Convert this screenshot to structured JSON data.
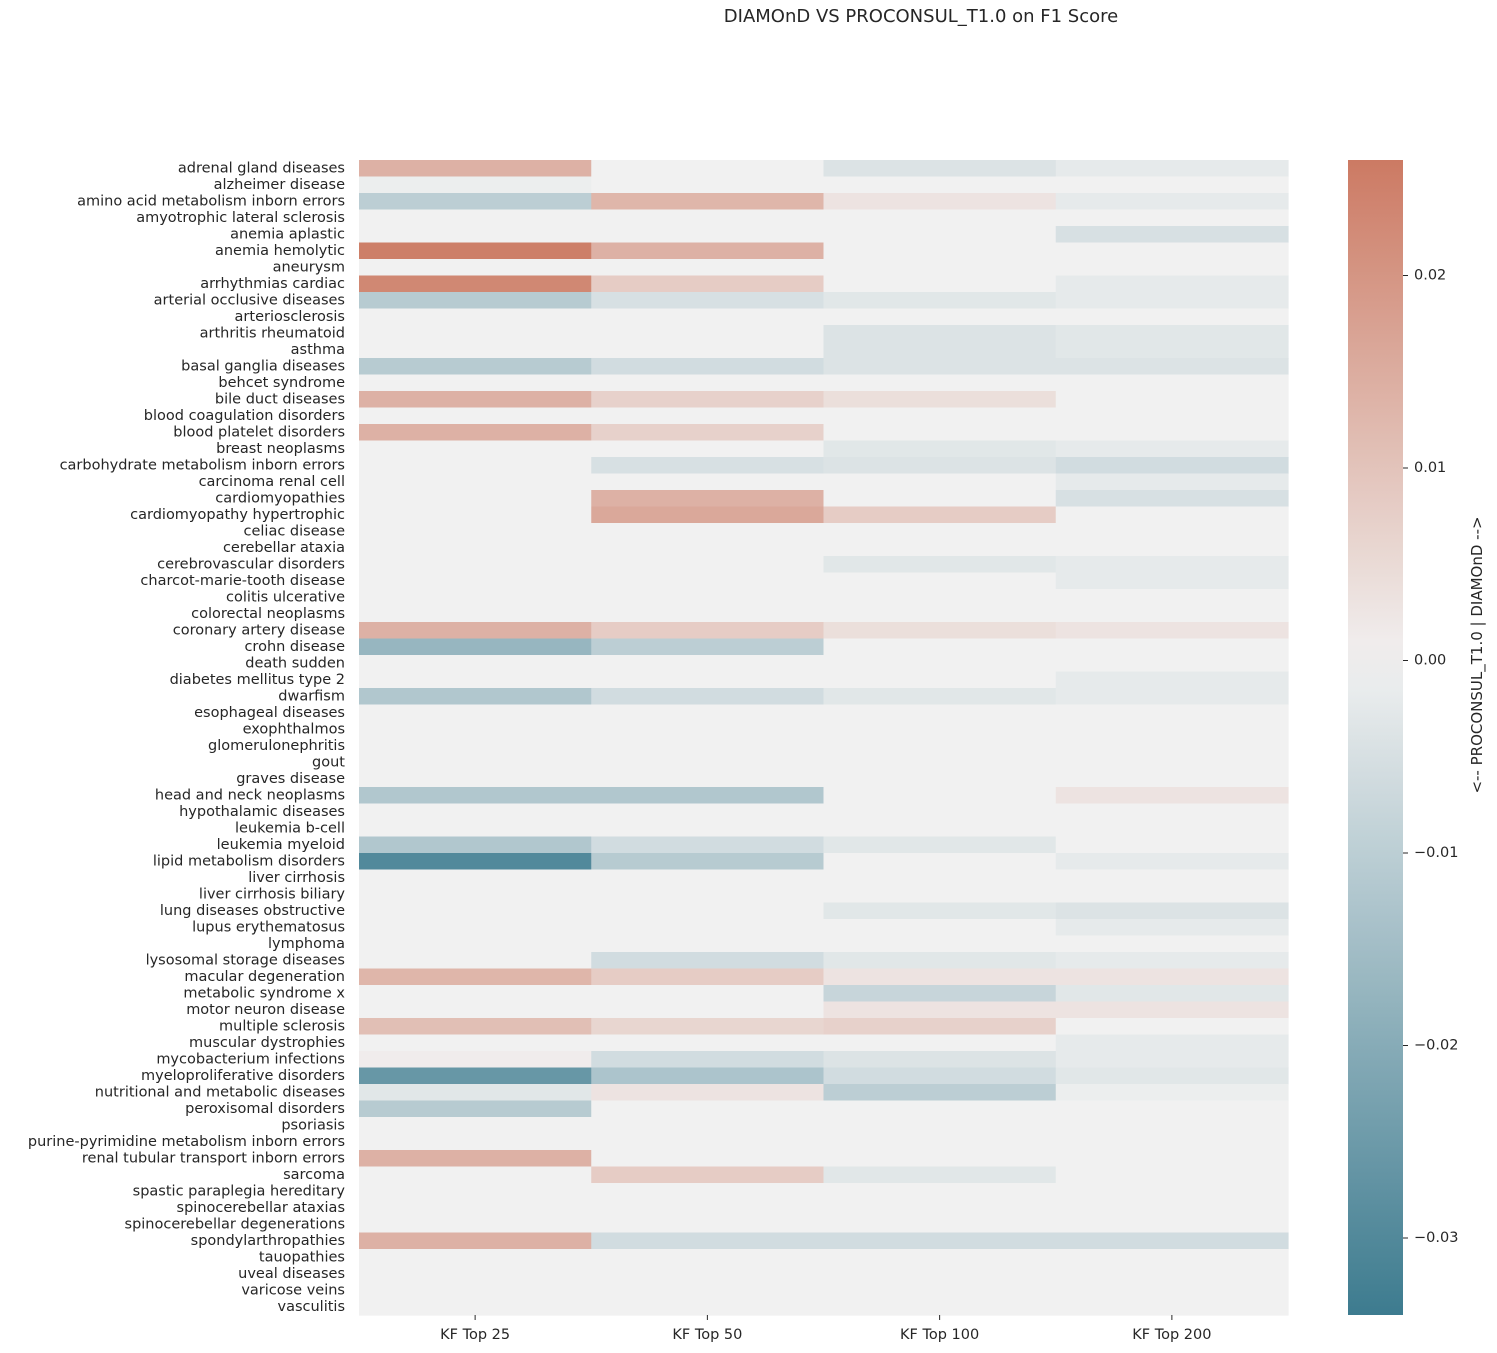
{
  "chart_data": {
    "type": "heatmap",
    "title": "DIAMOnD VS PROCONSUL_T1.0 on F1 Score",
    "columns": [
      "KF Top 25",
      "KF Top 50",
      "KF Top 100",
      "KF Top 200"
    ],
    "rows": [
      "adrenal gland diseases",
      "alzheimer disease",
      "amino acid metabolism inborn errors",
      "amyotrophic lateral sclerosis",
      "anemia aplastic",
      "anemia hemolytic",
      "aneurysm",
      "arrhythmias cardiac",
      "arterial occlusive diseases",
      "arteriosclerosis",
      "arthritis rheumatoid",
      "asthma",
      "basal ganglia diseases",
      "behcet syndrome",
      "bile duct diseases",
      "blood coagulation disorders",
      "blood platelet disorders",
      "breast neoplasms",
      "carbohydrate metabolism inborn errors",
      "carcinoma renal cell",
      "cardiomyopathies",
      "cardiomyopathy hypertrophic",
      "celiac disease",
      "cerebellar ataxia",
      "cerebrovascular disorders",
      "charcot-marie-tooth disease",
      "colitis ulcerative",
      "colorectal neoplasms",
      "coronary artery disease",
      "crohn disease",
      "death sudden",
      "diabetes mellitus type 2",
      "dwarfism",
      "esophageal diseases",
      "exophthalmos",
      "glomerulonephritis",
      "gout",
      "graves disease",
      "head and neck neoplasms",
      "hypothalamic diseases",
      "leukemia b-cell",
      "leukemia myeloid",
      "lipid metabolism disorders",
      "liver cirrhosis",
      "liver cirrhosis biliary",
      "lung diseases obstructive",
      "lupus erythematosus",
      "lymphoma",
      "lysosomal storage diseases",
      "macular degeneration",
      "metabolic syndrome x",
      "motor neuron disease",
      "multiple sclerosis",
      "muscular dystrophies",
      "mycobacterium infections",
      "myeloproliferative disorders",
      "nutritional and metabolic diseases",
      "peroxisomal disorders",
      "psoriasis",
      "purine-pyrimidine metabolism inborn errors",
      "renal tubular transport inborn errors",
      "sarcoma",
      "spastic paraplegia hereditary",
      "spinocerebellar ataxias",
      "spinocerebellar degenerations",
      "spondylarthropathies",
      "tauopathies",
      "uveal diseases",
      "varicose veins",
      "vasculitis"
    ],
    "values": [
      [
        0.014,
        0.0,
        -0.004,
        -0.002
      ],
      [
        -0.001,
        0.0,
        0.0,
        0.0
      ],
      [
        -0.01,
        0.013,
        0.003,
        -0.002
      ],
      [
        0.0,
        0.0,
        0.0,
        0.0
      ],
      [
        0.0,
        0.0,
        0.0,
        -0.005
      ],
      [
        0.025,
        0.014,
        0.0,
        0.0
      ],
      [
        0.0,
        0.0,
        0.0,
        0.0
      ],
      [
        0.023,
        0.008,
        0.0,
        -0.002
      ],
      [
        -0.011,
        -0.005,
        -0.003,
        -0.002
      ],
      [
        0.0,
        0.0,
        0.0,
        0.0
      ],
      [
        0.0,
        0.0,
        -0.004,
        -0.003
      ],
      [
        0.0,
        0.0,
        -0.004,
        -0.003
      ],
      [
        -0.011,
        -0.006,
        -0.004,
        -0.004
      ],
      [
        0.0,
        0.0,
        0.0,
        0.0
      ],
      [
        0.014,
        0.007,
        0.004,
        0.0
      ],
      [
        0.0,
        0.0,
        0.0,
        0.0
      ],
      [
        0.014,
        0.007,
        0.0,
        0.0
      ],
      [
        0.0,
        0.0,
        -0.003,
        -0.002
      ],
      [
        0.0,
        -0.005,
        -0.004,
        -0.006
      ],
      [
        0.0,
        0.0,
        0.0,
        -0.002
      ],
      [
        0.0,
        0.014,
        0.0,
        -0.005
      ],
      [
        0.0,
        0.016,
        0.008,
        0.0
      ],
      [
        0.0,
        0.0,
        0.0,
        0.0
      ],
      [
        0.0,
        0.0,
        0.0,
        0.0
      ],
      [
        0.0,
        0.0,
        -0.003,
        -0.002
      ],
      [
        0.0,
        0.0,
        0.0,
        -0.002
      ],
      [
        0.0,
        0.0,
        0.0,
        0.0
      ],
      [
        0.0,
        0.0,
        0.0,
        0.0
      ],
      [
        0.014,
        0.008,
        0.004,
        0.003
      ],
      [
        -0.017,
        -0.01,
        0.0,
        0.0
      ],
      [
        0.0,
        0.0,
        0.0,
        0.0
      ],
      [
        0.0,
        0.0,
        0.0,
        -0.002
      ],
      [
        -0.012,
        -0.006,
        -0.003,
        -0.002
      ],
      [
        0.0,
        0.0,
        0.0,
        0.0
      ],
      [
        0.0,
        0.0,
        0.0,
        0.0
      ],
      [
        0.0,
        0.0,
        0.0,
        0.0
      ],
      [
        0.0,
        0.0,
        0.0,
        0.0
      ],
      [
        0.0,
        0.0,
        0.0,
        0.0
      ],
      [
        -0.012,
        -0.012,
        0.0,
        0.003
      ],
      [
        0.0,
        0.0,
        0.0,
        0.0
      ],
      [
        0.0,
        0.0,
        0.0,
        0.0
      ],
      [
        -0.012,
        -0.006,
        -0.003,
        0.0
      ],
      [
        -0.03,
        -0.011,
        0.0,
        -0.002
      ],
      [
        0.0,
        0.0,
        0.0,
        0.0
      ],
      [
        0.0,
        0.0,
        0.0,
        0.0
      ],
      [
        0.0,
        0.0,
        -0.003,
        -0.004
      ],
      [
        0.0,
        0.0,
        0.0,
        -0.002
      ],
      [
        0.0,
        0.0,
        0.0,
        0.0
      ],
      [
        0.0,
        -0.006,
        -0.003,
        -0.002
      ],
      [
        0.013,
        0.008,
        0.003,
        0.003
      ],
      [
        0.0,
        0.0,
        -0.008,
        -0.003
      ],
      [
        0.0,
        0.0,
        0.003,
        0.003
      ],
      [
        0.011,
        0.006,
        0.007,
        0.0
      ],
      [
        0.0,
        0.0,
        0.0,
        -0.002
      ],
      [
        0.001,
        -0.006,
        -0.004,
        -0.002
      ],
      [
        -0.026,
        -0.013,
        -0.006,
        -0.003
      ],
      [
        -0.003,
        0.003,
        -0.01,
        -0.001
      ],
      [
        -0.011,
        0.0,
        0.0,
        0.0
      ],
      [
        0.0,
        0.0,
        0.0,
        0.0
      ],
      [
        0.0,
        0.0,
        0.0,
        0.0
      ],
      [
        0.014,
        0.0,
        0.0,
        0.0
      ],
      [
        0.0,
        0.008,
        -0.003,
        0.0
      ],
      [
        0.0,
        0.0,
        0.0,
        0.0
      ],
      [
        0.0,
        0.0,
        0.0,
        0.0
      ],
      [
        0.0,
        0.0,
        0.0,
        0.0
      ],
      [
        0.014,
        -0.006,
        -0.006,
        -0.006
      ],
      [
        0.0,
        0.0,
        0.0,
        0.0
      ],
      [
        0.0,
        0.0,
        0.0,
        0.0
      ],
      [
        0.0,
        0.0,
        0.0,
        0.0
      ],
      [
        0.0,
        0.0,
        0.0,
        0.0
      ]
    ],
    "colorbar": {
      "label": "<-- PROCONSUL_T1.0 | DIAMOnD -->",
      "range": [
        -0.034,
        0.026
      ],
      "ticks": [
        0.02,
        0.01,
        0.0,
        -0.01,
        -0.02,
        -0.03
      ],
      "tick_labels": [
        "0.02",
        "0.01",
        "0.00",
        "−0.01",
        "−0.02",
        "−0.03"
      ],
      "colormap": "diverging",
      "low_color": "#3d7b8f",
      "mid_color": "#f1f1f1",
      "high_color": "#cc7a63"
    },
    "grid": false
  }
}
